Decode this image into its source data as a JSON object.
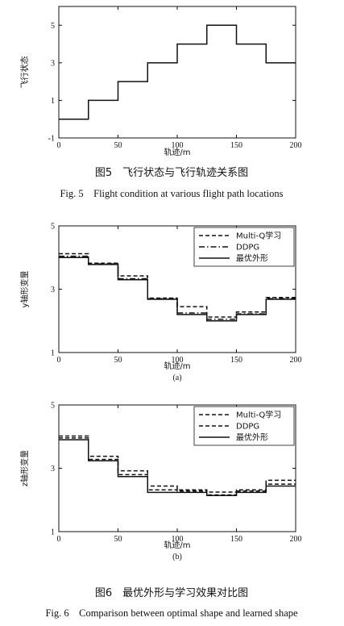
{
  "figure5": {
    "caption_cn": "图5　飞行状态与飞行轨迹关系图",
    "caption_en": "Fig. 5　Flight condition at various flight path locations"
  },
  "figure6": {
    "caption_cn": "图6　最优外形与学习效果对比图",
    "caption_en": "Fig. 6　Comparison between optimal shape and learned shape"
  },
  "chart_data": [
    {
      "type": "line",
      "id": "fig5",
      "xlabel": "轨迹/m",
      "ylabel": "飞行状态",
      "xlim": [
        0,
        200
      ],
      "ylim": [
        -1,
        6
      ],
      "xticks": [
        0,
        50,
        100,
        150,
        200
      ],
      "yticks": [
        -1,
        1,
        3,
        5
      ],
      "series": [
        {
          "style": "solid",
          "x": [
            0,
            25,
            25,
            50,
            50,
            75,
            75,
            100,
            100,
            125,
            125,
            150,
            150,
            175,
            175,
            200
          ],
          "y": [
            0,
            0,
            1,
            1,
            2,
            2,
            3,
            3,
            4,
            4,
            5,
            5,
            4,
            4,
            3,
            3
          ]
        }
      ]
    },
    {
      "type": "line",
      "id": "fig6a",
      "subtitle": "(a)",
      "xlabel": "轨迹/m",
      "ylabel": "y轴形变量",
      "xlim": [
        0,
        200
      ],
      "ylim": [
        1,
        5
      ],
      "xticks": [
        0,
        50,
        100,
        150,
        200
      ],
      "yticks": [
        1,
        3,
        5
      ],
      "legend": "top-right",
      "series": [
        {
          "name": "Multi-Q学习",
          "style": "dashed",
          "x": [
            0,
            25,
            25,
            50,
            50,
            75,
            75,
            100,
            100,
            125,
            125,
            150,
            150,
            175,
            175,
            200
          ],
          "y": [
            4.12,
            4.12,
            3.82,
            3.82,
            3.42,
            3.42,
            2.72,
            2.72,
            2.45,
            2.45,
            2.12,
            2.12,
            2.28,
            2.28,
            2.74,
            2.74
          ]
        },
        {
          "name": "DDPG",
          "style": "dashdot",
          "x": [
            0,
            25,
            25,
            50,
            50,
            75,
            75,
            100,
            100,
            125,
            125,
            150,
            150,
            175,
            175,
            200
          ],
          "y": [
            4.04,
            4.04,
            3.8,
            3.8,
            3.33,
            3.33,
            2.7,
            2.7,
            2.25,
            2.25,
            2.05,
            2.05,
            2.22,
            2.22,
            2.7,
            2.7
          ]
        },
        {
          "name": "最优外形",
          "style": "solid",
          "x": [
            0,
            25,
            25,
            50,
            50,
            75,
            75,
            100,
            100,
            125,
            125,
            150,
            150,
            175,
            175,
            200
          ],
          "y": [
            4.0,
            4.0,
            3.78,
            3.78,
            3.3,
            3.3,
            2.68,
            2.68,
            2.2,
            2.2,
            2.0,
            2.0,
            2.2,
            2.2,
            2.68,
            2.68
          ]
        }
      ]
    },
    {
      "type": "line",
      "id": "fig6b",
      "subtitle": "(b)",
      "xlabel": "轨迹/m",
      "ylabel": "z轴形变量",
      "xlim": [
        0,
        200
      ],
      "ylim": [
        1,
        5
      ],
      "xticks": [
        0,
        50,
        100,
        150,
        200
      ],
      "yticks": [
        1,
        3,
        5
      ],
      "legend": "top-right",
      "series": [
        {
          "name": "Multi-Q学习",
          "style": "dashed",
          "x": [
            0,
            25,
            25,
            50,
            50,
            75,
            75,
            100,
            100,
            125,
            125,
            150,
            150,
            175,
            175,
            200
          ],
          "y": [
            4.02,
            4.02,
            3.38,
            3.38,
            2.92,
            2.92,
            2.44,
            2.44,
            2.32,
            2.32,
            2.25,
            2.25,
            2.32,
            2.32,
            2.62,
            2.62
          ]
        },
        {
          "name": "DDPG",
          "style": "dashed",
          "x": [
            0,
            25,
            25,
            50,
            50,
            75,
            75,
            100,
            100,
            125,
            125,
            150,
            150,
            175,
            175,
            200
          ],
          "y": [
            3.96,
            3.96,
            3.28,
            3.28,
            2.8,
            2.8,
            2.32,
            2.32,
            2.28,
            2.28,
            2.16,
            2.16,
            2.28,
            2.28,
            2.5,
            2.5
          ]
        },
        {
          "name": "最优外形",
          "style": "solid",
          "x": [
            0,
            25,
            25,
            50,
            50,
            75,
            75,
            100,
            100,
            125,
            125,
            150,
            150,
            175,
            175,
            200
          ],
          "y": [
            3.9,
            3.9,
            3.24,
            3.24,
            2.74,
            2.74,
            2.24,
            2.24,
            2.24,
            2.24,
            2.14,
            2.14,
            2.24,
            2.24,
            2.44,
            2.44
          ]
        }
      ]
    }
  ]
}
